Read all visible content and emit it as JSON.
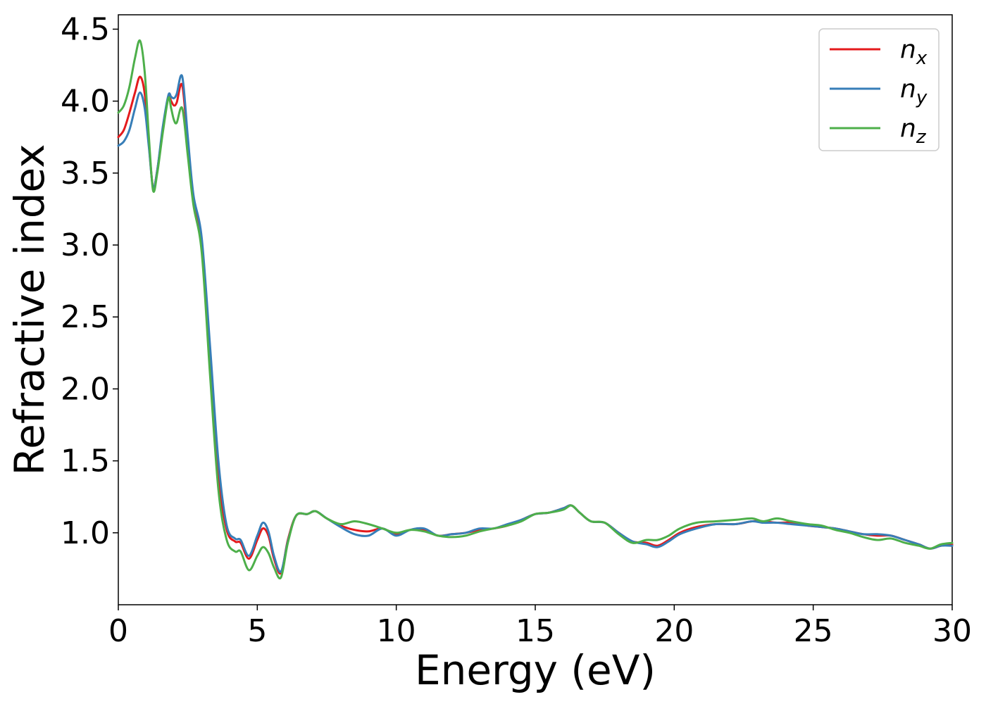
{
  "chart_data": {
    "type": "line",
    "xlabel": "Energy (eV)",
    "ylabel": "Refractive index",
    "xlim": [
      0,
      30
    ],
    "ylim": [
      0.5,
      4.6
    ],
    "xticks": [
      0,
      5,
      10,
      15,
      20,
      25,
      30
    ],
    "yticks": [
      1.0,
      1.5,
      2.0,
      2.5,
      3.0,
      3.5,
      4.0,
      4.5
    ],
    "xtick_labels": [
      "0",
      "5",
      "10",
      "15",
      "20",
      "25",
      "30"
    ],
    "ytick_labels": [
      "1.0",
      "1.5",
      "2.0",
      "2.5",
      "3.0",
      "3.5",
      "4.0",
      "4.5"
    ],
    "grid": false,
    "legend_position": "top-right",
    "series": [
      {
        "name": "n_x",
        "label_base": "n",
        "label_sub": "x",
        "color": "#e41a1c",
        "x": [
          0,
          0.2,
          0.4,
          0.6,
          0.78,
          0.95,
          1.1,
          1.25,
          1.4,
          1.6,
          1.8,
          1.9,
          2.0,
          2.1,
          2.3,
          2.5,
          2.7,
          3.0,
          3.3,
          3.6,
          3.9,
          4.2,
          4.4,
          4.7,
          5.0,
          5.2,
          5.4,
          5.6,
          5.85,
          6.1,
          6.4,
          6.8,
          7.1,
          7.5,
          8.0,
          8.5,
          9.0,
          9.5,
          10.0,
          10.5,
          11.0,
          11.5,
          12.0,
          12.5,
          13.0,
          13.5,
          14.0,
          14.5,
          15.0,
          15.5,
          16.0,
          16.3,
          16.6,
          17.0,
          17.5,
          18.0,
          18.5,
          19.0,
          19.4,
          19.8,
          20.2,
          20.8,
          21.5,
          22.2,
          22.8,
          23.2,
          23.7,
          24.2,
          24.8,
          25.3,
          25.8,
          26.3,
          26.8,
          27.3,
          27.8,
          28.3,
          28.8,
          29.2,
          29.6,
          30.0
        ],
        "y": [
          3.75,
          3.8,
          3.92,
          4.06,
          4.17,
          4.05,
          3.7,
          3.4,
          3.52,
          3.8,
          4.03,
          4.0,
          3.97,
          3.99,
          4.11,
          3.7,
          3.3,
          3.0,
          2.2,
          1.4,
          1.02,
          0.94,
          0.93,
          0.82,
          0.95,
          1.03,
          0.98,
          0.82,
          0.72,
          0.95,
          1.12,
          1.13,
          1.15,
          1.1,
          1.05,
          1.02,
          1.01,
          1.03,
          0.99,
          1.02,
          1.02,
          0.98,
          0.99,
          1.0,
          1.02,
          1.03,
          1.05,
          1.09,
          1.13,
          1.14,
          1.17,
          1.19,
          1.14,
          1.08,
          1.07,
          1.0,
          0.94,
          0.93,
          0.91,
          0.95,
          1.0,
          1.04,
          1.06,
          1.06,
          1.08,
          1.08,
          1.07,
          1.07,
          1.05,
          1.04,
          1.03,
          1.01,
          0.99,
          0.98,
          0.98,
          0.95,
          0.92,
          0.89,
          0.91,
          0.92
        ]
      },
      {
        "name": "n_y",
        "label_base": "n",
        "label_sub": "y",
        "color": "#377eb8",
        "x": [
          0,
          0.2,
          0.4,
          0.6,
          0.78,
          0.95,
          1.1,
          1.25,
          1.4,
          1.6,
          1.8,
          1.9,
          2.0,
          2.1,
          2.3,
          2.5,
          2.7,
          3.0,
          3.3,
          3.6,
          3.9,
          4.2,
          4.4,
          4.7,
          5.0,
          5.2,
          5.4,
          5.6,
          5.85,
          6.1,
          6.4,
          6.8,
          7.1,
          7.5,
          8.0,
          8.5,
          9.0,
          9.5,
          10.0,
          10.5,
          11.0,
          11.5,
          12.0,
          12.5,
          13.0,
          13.5,
          14.0,
          14.5,
          15.0,
          15.5,
          16.0,
          16.3,
          16.6,
          17.0,
          17.5,
          18.0,
          18.5,
          19.0,
          19.4,
          19.8,
          20.2,
          20.8,
          21.5,
          22.2,
          22.8,
          23.2,
          23.7,
          24.2,
          24.8,
          25.3,
          25.8,
          26.3,
          26.8,
          27.3,
          27.8,
          28.3,
          28.8,
          29.2,
          29.6,
          30.0
        ],
        "y": [
          3.69,
          3.72,
          3.8,
          3.95,
          4.06,
          3.95,
          3.68,
          3.4,
          3.52,
          3.82,
          4.04,
          4.03,
          4.02,
          4.05,
          4.17,
          3.75,
          3.35,
          3.05,
          2.3,
          1.5,
          1.05,
          0.96,
          0.95,
          0.84,
          0.98,
          1.07,
          1.01,
          0.84,
          0.73,
          0.94,
          1.12,
          1.13,
          1.15,
          1.1,
          1.04,
          0.99,
          0.98,
          1.03,
          0.98,
          1.02,
          1.03,
          0.98,
          0.99,
          1.0,
          1.03,
          1.03,
          1.06,
          1.09,
          1.13,
          1.14,
          1.17,
          1.19,
          1.14,
          1.08,
          1.07,
          1.0,
          0.94,
          0.92,
          0.9,
          0.94,
          0.99,
          1.03,
          1.06,
          1.06,
          1.08,
          1.07,
          1.07,
          1.06,
          1.05,
          1.04,
          1.03,
          1.01,
          0.99,
          0.99,
          0.98,
          0.95,
          0.92,
          0.89,
          0.91,
          0.91
        ]
      },
      {
        "name": "n_z",
        "label_base": "n",
        "label_sub": "z",
        "color": "#4daf4a",
        "x": [
          0,
          0.2,
          0.4,
          0.6,
          0.78,
          0.95,
          1.1,
          1.25,
          1.4,
          1.6,
          1.8,
          1.9,
          2.0,
          2.1,
          2.3,
          2.5,
          2.7,
          3.0,
          3.3,
          3.6,
          3.9,
          4.2,
          4.4,
          4.7,
          5.0,
          5.2,
          5.4,
          5.6,
          5.85,
          6.1,
          6.4,
          6.8,
          7.1,
          7.5,
          8.0,
          8.5,
          9.0,
          9.5,
          10.0,
          10.5,
          11.0,
          11.5,
          12.0,
          12.5,
          13.0,
          13.5,
          14.0,
          14.5,
          15.0,
          15.5,
          16.0,
          16.3,
          16.6,
          17.0,
          17.5,
          18.0,
          18.5,
          19.0,
          19.4,
          19.8,
          20.2,
          20.8,
          21.5,
          22.2,
          22.8,
          23.2,
          23.7,
          24.2,
          24.8,
          25.3,
          25.8,
          26.3,
          26.8,
          27.3,
          27.8,
          28.3,
          28.8,
          29.2,
          29.6,
          30.0
        ],
        "y": [
          3.92,
          3.97,
          4.1,
          4.3,
          4.42,
          4.2,
          3.75,
          3.38,
          3.5,
          3.78,
          4.02,
          3.95,
          3.87,
          3.85,
          3.95,
          3.62,
          3.28,
          2.95,
          2.1,
          1.3,
          0.95,
          0.87,
          0.87,
          0.74,
          0.84,
          0.9,
          0.86,
          0.76,
          0.69,
          0.93,
          1.12,
          1.13,
          1.15,
          1.1,
          1.06,
          1.08,
          1.06,
          1.03,
          1.0,
          1.02,
          1.01,
          0.98,
          0.97,
          0.98,
          1.01,
          1.03,
          1.05,
          1.08,
          1.13,
          1.14,
          1.16,
          1.19,
          1.14,
          1.08,
          1.07,
          0.99,
          0.93,
          0.95,
          0.95,
          0.98,
          1.03,
          1.07,
          1.08,
          1.09,
          1.1,
          1.08,
          1.1,
          1.08,
          1.06,
          1.05,
          1.02,
          1.0,
          0.97,
          0.95,
          0.96,
          0.93,
          0.91,
          0.89,
          0.92,
          0.93
        ]
      }
    ]
  }
}
